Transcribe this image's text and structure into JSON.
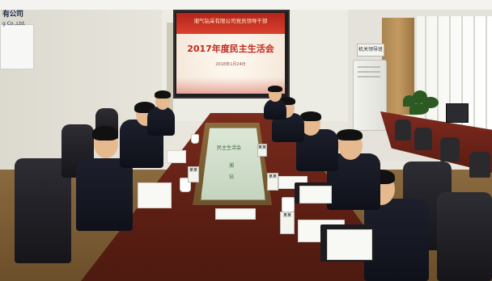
{
  "slide": {
    "header": "湘气钻采有限公司党员领导干部",
    "title": "2017年度民主生活会",
    "date": "2018年1月24日"
  },
  "signs": {
    "left_title": "有公司",
    "left_sub": "g Co.,Ltd.",
    "plaque": "机关领导班"
  },
  "centerpiece_text": [
    "民主生活会",
    "湘",
    "钻"
  ],
  "nameplates": [
    "某某",
    "某某",
    "某某",
    "某某"
  ],
  "colors": {
    "table": "#6b2418",
    "slide_red": "#c4281c",
    "floor": "#7a5a34",
    "suit": "#1b1d28"
  }
}
